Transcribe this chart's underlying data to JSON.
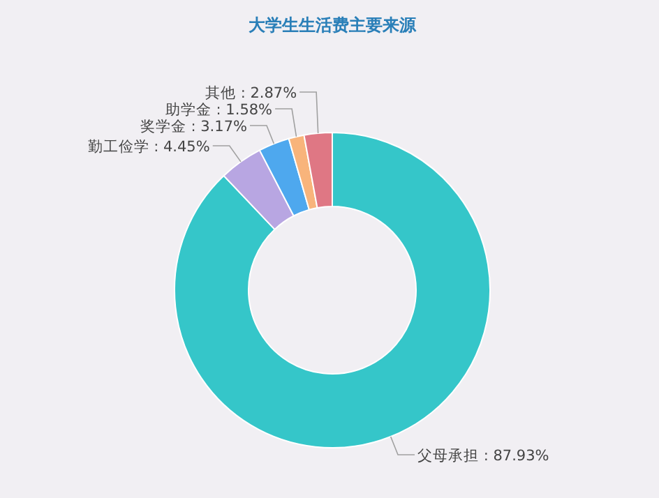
{
  "chart_data": {
    "type": "donut",
    "title": "大学生生活费主要来源",
    "categories": [
      "父母承担",
      "勤工俭学",
      "奖学金",
      "助学金",
      "其他"
    ],
    "values": [
      87.93,
      4.45,
      3.17,
      1.58,
      2.87
    ],
    "value_labels": [
      "87.93%",
      "4.45%",
      "3.17%",
      "1.58%",
      "2.87%"
    ],
    "colors": [
      "#35c6c9",
      "#b8a6e2",
      "#4ea8ee",
      "#f8b47b",
      "#df7784"
    ],
    "legend": false
  }
}
